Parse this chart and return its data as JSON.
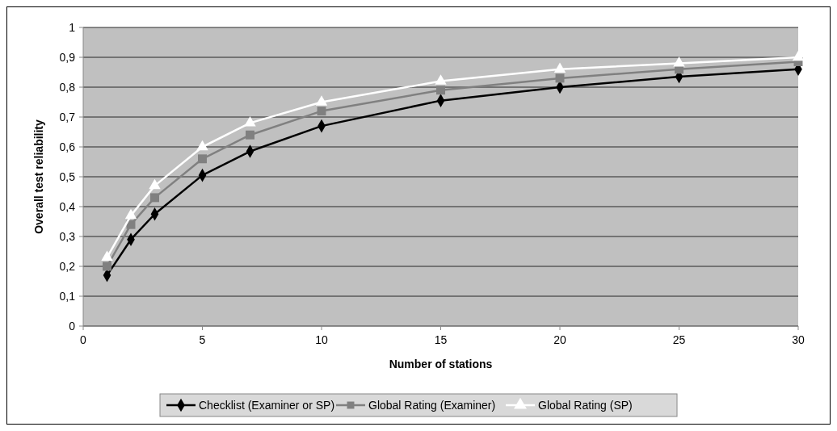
{
  "chart_data": {
    "type": "line",
    "xlabel": "Number of stations",
    "ylabel": "Overall test reliability",
    "x": [
      1,
      2,
      3,
      5,
      7,
      10,
      15,
      20,
      25,
      30
    ],
    "series": [
      {
        "name": "Checklist (Examiner or SP)",
        "color": "#000000",
        "marker": "diamond",
        "values": [
          0.17,
          0.29,
          0.375,
          0.505,
          0.585,
          0.67,
          0.755,
          0.8,
          0.835,
          0.86
        ]
      },
      {
        "name": "Global Rating (Examiner)",
        "color": "#808080",
        "marker": "square",
        "values": [
          0.2,
          0.34,
          0.43,
          0.56,
          0.64,
          0.72,
          0.79,
          0.83,
          0.86,
          0.885
        ]
      },
      {
        "name": "Global Rating (SP)",
        "color": "#ffffff",
        "marker": "triangle",
        "values": [
          0.23,
          0.37,
          0.47,
          0.6,
          0.68,
          0.75,
          0.82,
          0.86,
          0.88,
          0.9
        ]
      }
    ],
    "xlim": [
      0,
      30
    ],
    "xticks": [
      0,
      5,
      10,
      15,
      20,
      25,
      30
    ],
    "ylim": [
      0,
      1
    ],
    "yticks": [
      0,
      {
        "value": 0.1,
        "label": "0,1"
      },
      {
        "value": 0.2,
        "label": "0,2"
      },
      {
        "value": 0.3,
        "label": "0,3"
      },
      {
        "value": 0.4,
        "label": "0,4"
      },
      {
        "value": 0.5,
        "label": "0,5"
      },
      {
        "value": 0.6,
        "label": "0,6"
      },
      {
        "value": 0.7,
        "label": "0,7"
      },
      {
        "value": 0.8,
        "label": "0,8"
      },
      {
        "value": 0.9,
        "label": "0,9"
      },
      1
    ],
    "grid": "y",
    "legend": "bottom"
  }
}
